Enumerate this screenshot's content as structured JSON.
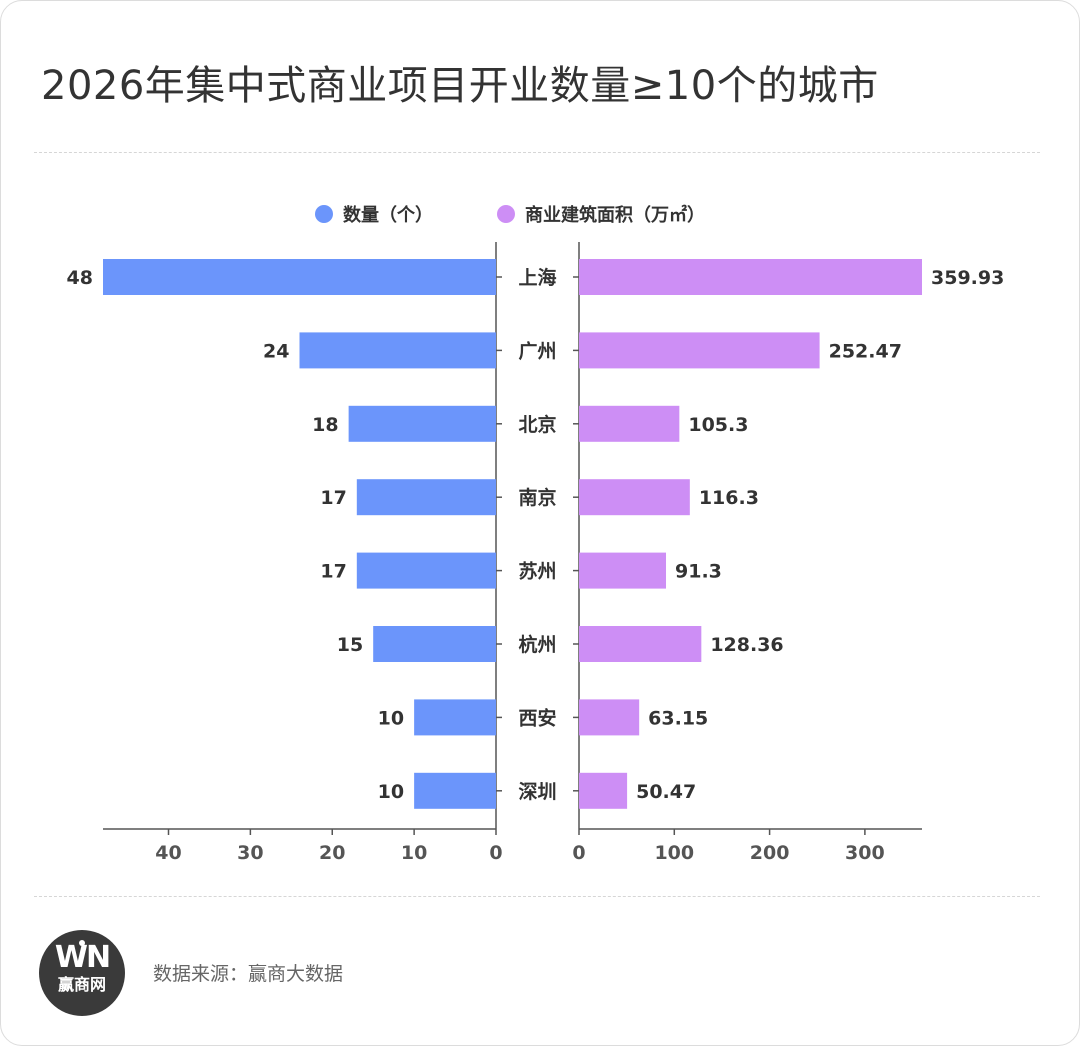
{
  "page": {
    "title": "2026年集中式商业项目开业数量≥10个的城市",
    "source": "数据来源：赢商大数据",
    "logo": {
      "mark": "WN",
      "name": "赢商网"
    }
  },
  "colors": {
    "count_bar": "#6b95fb",
    "area_bar": "#cd8ef5",
    "axis": "#555555",
    "label_text": "#333333"
  },
  "chart_data": {
    "type": "bar",
    "orientation": "horizontal",
    "layout": "butterfly",
    "title": "2026年集中式商业项目开业数量≥10个的城市",
    "legend_position": "top-center",
    "categories": [
      "上海",
      "广州",
      "北京",
      "南京",
      "苏州",
      "杭州",
      "西安",
      "深圳"
    ],
    "series": [
      {
        "name": "数量（个）",
        "side": "left",
        "values": [
          48,
          24,
          18,
          17,
          17,
          15,
          10,
          10
        ],
        "value_labels": [
          "48",
          "24",
          "18",
          "17",
          "17",
          "15",
          "10",
          "10"
        ],
        "xlim": [
          0,
          48
        ],
        "ticks": [
          0,
          10,
          20,
          30,
          40
        ]
      },
      {
        "name": "商业建筑面积（万㎡）",
        "side": "right",
        "values": [
          359.93,
          252.47,
          105.3,
          116.3,
          91.3,
          128.36,
          63.15,
          50.47
        ],
        "value_labels": [
          "359.93",
          "252.47",
          "105.3",
          "116.3",
          "91.3",
          "128.36",
          "63.15",
          "50.47"
        ],
        "xlim": [
          0,
          359.93
        ],
        "ticks": [
          0,
          100,
          200,
          300
        ]
      }
    ]
  }
}
